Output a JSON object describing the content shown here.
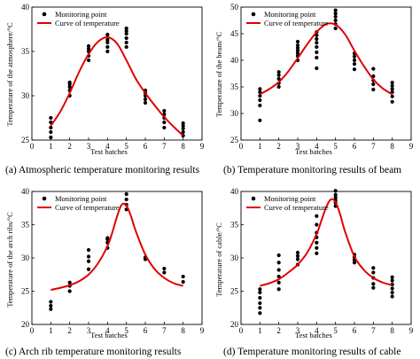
{
  "figure": {
    "legend_point": "Monitoring point",
    "legend_curve": "Curve of temperature",
    "point_color": "#000000",
    "curve_color": "#e00000"
  },
  "chart_data": [
    {
      "id": "a",
      "type": "scatter",
      "caption": "(a) Atmospheric temperature monitoring results",
      "xlabel": "Test batches",
      "ylabel": "Temperature of the atmosphere/°C",
      "xlim": [
        0,
        9
      ],
      "ylim": [
        25,
        40
      ],
      "xticks": [
        0,
        1,
        2,
        3,
        4,
        5,
        6,
        7,
        8,
        9
      ],
      "yticks": [
        25,
        30,
        35,
        40
      ],
      "legend_position": "top-left",
      "grid": false,
      "series": [
        {
          "type": "scatter",
          "x": [
            1,
            1,
            1,
            1,
            1,
            2,
            2,
            2,
            2,
            2,
            3,
            3,
            3,
            3,
            3,
            4,
            4,
            4,
            4,
            4,
            4,
            5,
            5,
            5,
            5,
            5,
            5,
            6,
            6,
            6,
            6,
            6,
            7,
            7,
            7,
            7,
            7,
            8,
            8,
            8,
            8,
            8
          ],
          "y": [
            25.3,
            25.9,
            26.4,
            27.0,
            27.5,
            30.0,
            30.6,
            31.0,
            31.3,
            31.5,
            34.0,
            34.5,
            35.0,
            35.3,
            35.6,
            35.0,
            35.5,
            36.0,
            36.3,
            36.6,
            36.9,
            35.5,
            36.0,
            36.5,
            37.0,
            37.3,
            37.6,
            29.2,
            29.6,
            30.0,
            30.3,
            30.6,
            26.4,
            27.0,
            27.5,
            27.9,
            28.3,
            25.5,
            25.9,
            26.3,
            26.6,
            26.9
          ]
        },
        {
          "type": "line",
          "x": [
            1,
            1.5,
            2,
            2.5,
            3,
            3.5,
            4,
            4.5,
            5,
            5.5,
            6,
            6.5,
            7,
            7.5,
            8
          ],
          "y": [
            26.6,
            28.2,
            30.3,
            32.7,
            34.7,
            36.1,
            36.6,
            35.9,
            34.0,
            31.9,
            30.3,
            28.9,
            27.6,
            26.5,
            25.5
          ]
        }
      ]
    },
    {
      "id": "b",
      "type": "scatter",
      "caption": "(b) Temperature monitoring results of beam",
      "xlabel": "Test batches",
      "ylabel": "Temperature of the beam/°C",
      "xlim": [
        0,
        9
      ],
      "ylim": [
        25,
        50
      ],
      "xticks": [
        0,
        1,
        2,
        3,
        4,
        5,
        6,
        7,
        8,
        9
      ],
      "yticks": [
        25,
        30,
        35,
        40,
        45,
        50
      ],
      "legend_position": "top-left",
      "grid": false,
      "series": [
        {
          "type": "scatter",
          "x": [
            1,
            1,
            1,
            1,
            1,
            1,
            2,
            2,
            2,
            2,
            2,
            3,
            3,
            3,
            3,
            3,
            3,
            3,
            4,
            4,
            4,
            4,
            4,
            4,
            4,
            4,
            5,
            5,
            5,
            5,
            5,
            5,
            6,
            6,
            6,
            6,
            6,
            7,
            7,
            7,
            7,
            7,
            8,
            8,
            8,
            8,
            8,
            8
          ],
          "y": [
            28.7,
            31.5,
            32.5,
            33.3,
            34.0,
            34.6,
            35.0,
            35.7,
            36.5,
            37.2,
            37.8,
            40.0,
            40.8,
            41.3,
            41.8,
            42.3,
            42.8,
            43.5,
            38.5,
            40.5,
            41.5,
            42.5,
            43.3,
            44.0,
            44.7,
            45.3,
            46.0,
            46.8,
            47.5,
            48.2,
            48.8,
            49.4,
            38.3,
            39.3,
            40.0,
            40.7,
            41.3,
            34.5,
            35.5,
            36.2,
            37.0,
            38.4,
            32.2,
            33.2,
            34.0,
            34.6,
            35.2,
            35.8
          ]
        },
        {
          "type": "line",
          "x": [
            1,
            1.5,
            2,
            2.5,
            3,
            3.5,
            4,
            4.5,
            5,
            5.5,
            6,
            6.5,
            7,
            7.5,
            8
          ],
          "y": [
            33.6,
            34.6,
            35.9,
            37.9,
            40.4,
            43.0,
            45.3,
            46.8,
            46.7,
            44.9,
            41.8,
            38.9,
            36.4,
            34.7,
            33.6
          ]
        }
      ]
    },
    {
      "id": "c",
      "type": "scatter",
      "caption": "(c) Arch rib temperature monitoring results",
      "xlabel": "Test batches",
      "ylabel": "Temperature of the arch ribs/°C",
      "xlim": [
        0,
        9
      ],
      "ylim": [
        20,
        40
      ],
      "xticks": [
        0,
        1,
        2,
        3,
        4,
        5,
        6,
        7,
        8,
        9
      ],
      "yticks": [
        20,
        25,
        30,
        35,
        40
      ],
      "legend_position": "top-left",
      "grid": false,
      "series": [
        {
          "type": "scatter",
          "x": [
            1,
            1,
            1,
            2,
            2,
            2,
            3,
            3,
            3,
            3,
            4,
            4,
            4,
            4,
            5,
            5,
            5,
            5,
            6,
            6,
            7,
            7,
            8,
            8
          ],
          "y": [
            22.3,
            22.8,
            23.4,
            25.0,
            25.8,
            26.3,
            28.3,
            29.5,
            30.2,
            31.2,
            31.5,
            32.3,
            32.8,
            33.0,
            37.3,
            38.0,
            38.8,
            39.6,
            29.8,
            30.1,
            27.8,
            28.4,
            26.4,
            27.2
          ]
        },
        {
          "type": "line",
          "x": [
            1,
            1.5,
            2,
            2.5,
            3,
            3.5,
            4,
            4.25,
            4.5,
            4.75,
            5,
            5.25,
            5.5,
            6,
            6.5,
            7,
            7.5,
            8
          ],
          "y": [
            25.2,
            25.5,
            25.9,
            26.5,
            27.5,
            29.2,
            31.8,
            33.8,
            36.2,
            38.0,
            37.9,
            36.2,
            34.0,
            30.5,
            28.3,
            27.0,
            26.2,
            25.8
          ]
        }
      ]
    },
    {
      "id": "d",
      "type": "scatter",
      "caption": "(d) Temperature monitoring results of cable",
      "xlabel": "Test batches",
      "ylabel": "Temperature of cable/°C",
      "xlim": [
        0,
        9
      ],
      "ylim": [
        20,
        40
      ],
      "xticks": [
        0,
        1,
        2,
        3,
        4,
        5,
        6,
        7,
        8,
        9
      ],
      "yticks": [
        20,
        25,
        30,
        35,
        40
      ],
      "legend_position": "top-left",
      "grid": false,
      "series": [
        {
          "type": "scatter",
          "x": [
            1,
            1,
            1,
            1,
            1,
            1,
            2,
            2,
            2,
            2,
            2,
            2,
            3,
            3,
            3,
            3,
            4,
            4,
            4,
            4,
            4,
            4,
            4,
            5,
            5,
            5,
            5,
            5,
            5,
            6,
            6,
            6,
            6,
            7,
            7,
            7,
            7,
            7,
            8,
            8,
            8,
            8,
            8,
            8
          ],
          "y": [
            21.7,
            22.5,
            23.2,
            24.0,
            24.8,
            25.3,
            25.3,
            26.3,
            27.2,
            28.2,
            29.3,
            30.4,
            29.0,
            29.8,
            30.3,
            30.8,
            30.7,
            31.5,
            32.3,
            33.1,
            33.8,
            35.0,
            36.3,
            37.8,
            38.3,
            38.7,
            39.1,
            39.5,
            40.1,
            29.3,
            29.7,
            30.1,
            30.5,
            25.5,
            26.1,
            27.0,
            27.8,
            28.5,
            24.2,
            24.8,
            25.4,
            26.0,
            26.6,
            27.1
          ]
        },
        {
          "type": "line",
          "x": [
            1,
            1.5,
            2,
            2.5,
            3,
            3.5,
            4,
            4.25,
            4.5,
            4.75,
            5,
            5.25,
            5.5,
            6,
            6.5,
            7,
            7.5,
            8
          ],
          "y": [
            25.8,
            26.2,
            26.8,
            27.8,
            29.0,
            30.8,
            33.6,
            35.6,
            37.6,
            38.8,
            38.4,
            36.5,
            34.0,
            30.2,
            28.2,
            27.0,
            26.3,
            25.9
          ]
        }
      ]
    }
  ]
}
